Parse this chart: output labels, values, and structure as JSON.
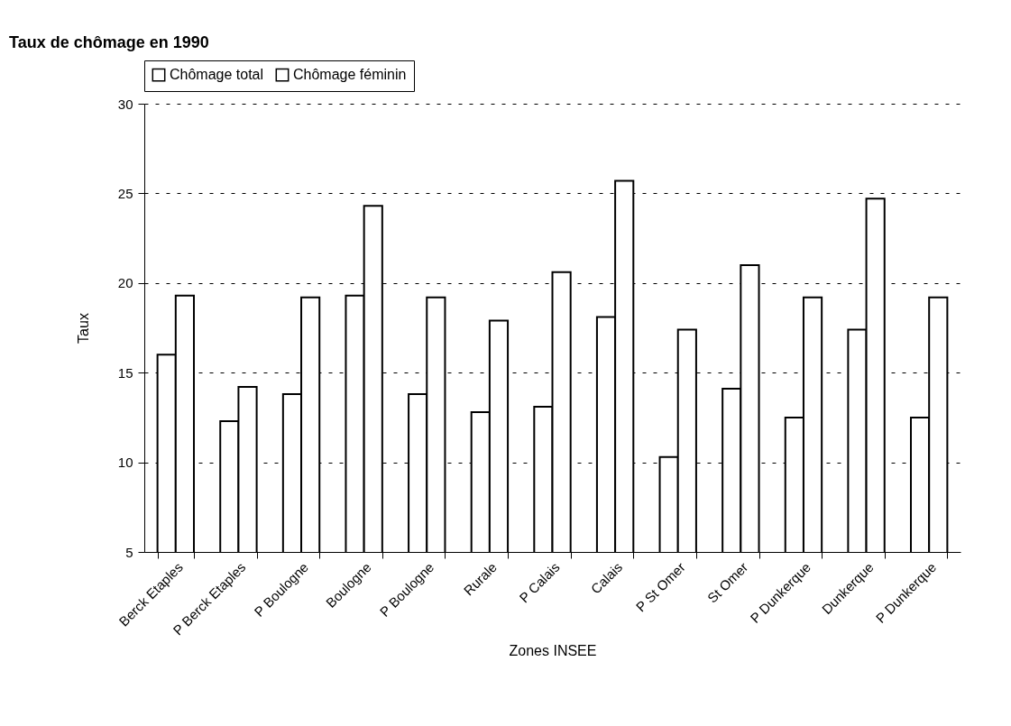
{
  "chart_data": {
    "type": "bar",
    "title": "Taux de chômage en 1990",
    "xlabel": "Zones INSEE",
    "ylabel": "Taux",
    "categories": [
      "Berck Etaples",
      "P Berck Etaples",
      "P Boulogne",
      "Boulogne",
      "P Boulogne",
      "Rurale",
      "P Calais",
      "Calais",
      "P St Omer",
      "St Omer",
      "P Dunkerque",
      "Dunkerque",
      "P Dunkerque"
    ],
    "series": [
      {
        "name": "Chômage total",
        "color": "#ffffff",
        "values": [
          16.0,
          12.3,
          13.8,
          19.3,
          13.8,
          12.8,
          13.1,
          18.1,
          10.3,
          14.1,
          12.5,
          17.4,
          12.5
        ]
      },
      {
        "name": "Chômage féminin",
        "color": "#ffffff",
        "values": [
          19.3,
          14.2,
          19.2,
          24.3,
          19.2,
          17.9,
          20.6,
          25.7,
          17.4,
          21.0,
          19.2,
          24.7,
          19.2
        ]
      }
    ],
    "ylim": [
      5,
      30
    ],
    "yticks": [
      5,
      10,
      15,
      20,
      25,
      30
    ],
    "grid": "y",
    "legend": "top"
  }
}
